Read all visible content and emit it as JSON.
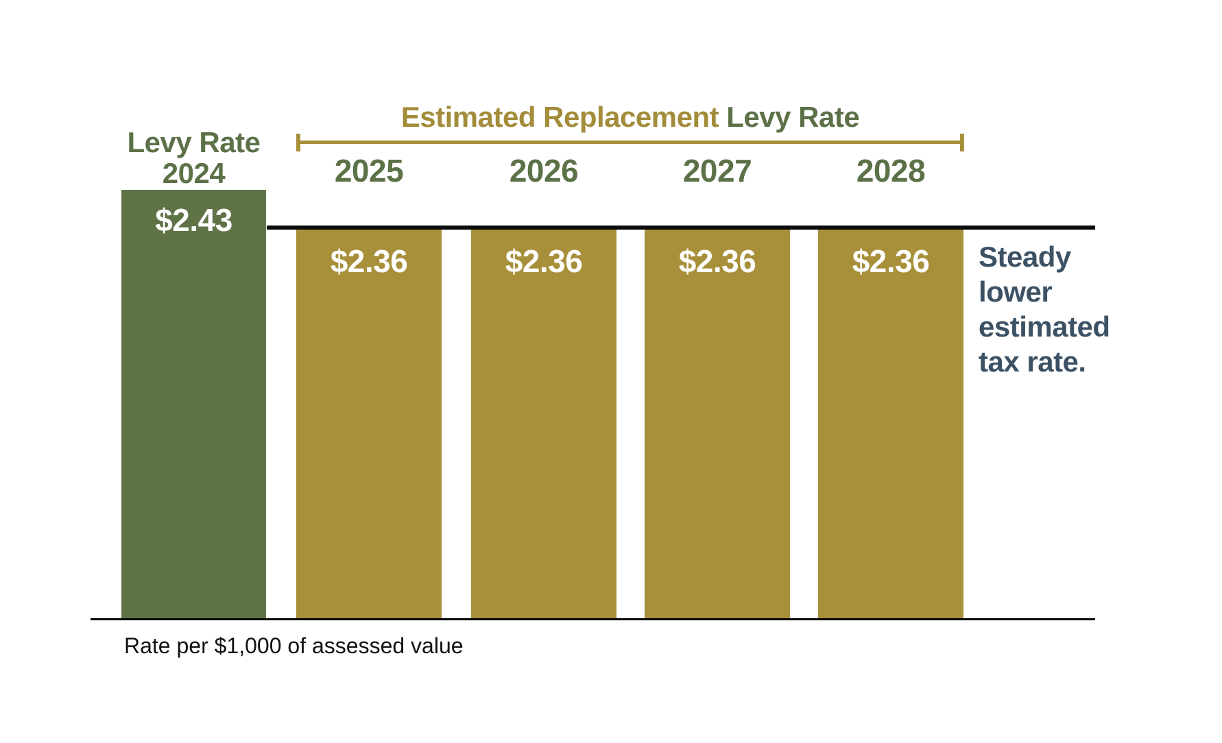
{
  "chart_data": {
    "type": "bar",
    "title_segments": [
      {
        "text": "Estimated Replacement",
        "color": "#a38c3a"
      },
      {
        "text": "Levy Rate",
        "color": "#5c7147"
      }
    ],
    "categories": [
      "2024",
      "2025",
      "2026",
      "2027",
      "2028"
    ],
    "values": [
      2.43,
      2.36,
      2.36,
      2.36,
      2.36
    ],
    "bars": [
      {
        "category_lines": {
          "line1": "Levy Rate",
          "line2": "2024"
        },
        "value": 2.43,
        "label": "$2.43",
        "fill": "#5f7347"
      },
      {
        "category": "2025",
        "value": 2.36,
        "label": "$2.36",
        "fill": "#a8903b"
      },
      {
        "category": "2026",
        "value": 2.36,
        "label": "$2.36",
        "fill": "#a8903b"
      },
      {
        "category": "2027",
        "value": 2.36,
        "label": "$2.36",
        "fill": "#a8903b"
      },
      {
        "category": "2028",
        "value": 2.36,
        "label": "$2.36",
        "fill": "#a8903b"
      }
    ],
    "annotation": {
      "text": "Steady lower estimated tax rate.",
      "lines": [
        "Steady",
        "lower",
        "estimated",
        "tax rate."
      ],
      "color": "#3c5264"
    },
    "footnote": "Rate per $1,000 of assessed value",
    "layout_hints": {
      "grid": false,
      "legend": false,
      "value_labels_inside_bars": true,
      "reference_line_at_value": 2.36,
      "bracket_over_years": [
        "2025",
        "2028"
      ],
      "baseline_axis": true
    },
    "colors": {
      "bar_green": "#5f7347",
      "bar_gold": "#a8903b",
      "text_green": "#5c7147",
      "text_gold": "#a38c3a",
      "annotation_slate": "#3c5264",
      "line_black": "#0c0c0c",
      "value_text": "#ffffff"
    }
  }
}
